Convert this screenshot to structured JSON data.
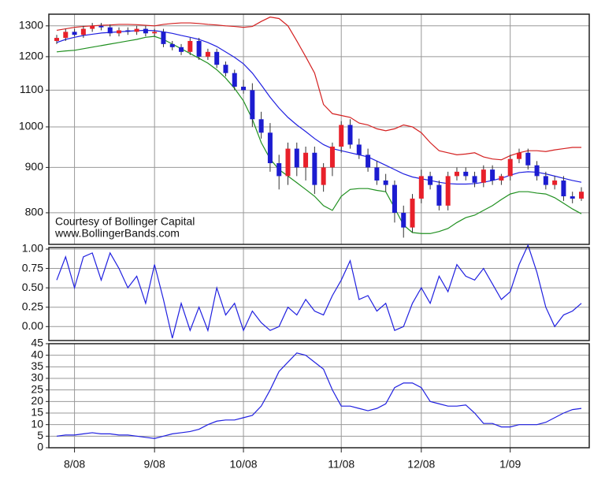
{
  "chart_data": [
    {
      "type": "candlestick",
      "annotations": [
        "Courtesy of Bollinger Capital",
        "www.BollingerBands.com"
      ],
      "categories": [
        null,
        null,
        "8/08",
        null,
        null,
        null,
        null,
        null,
        null,
        null,
        null,
        "9/08",
        null,
        null,
        null,
        null,
        null,
        null,
        null,
        null,
        null,
        "10/08",
        null,
        null,
        null,
        null,
        null,
        null,
        null,
        null,
        null,
        null,
        "11/08",
        null,
        null,
        null,
        null,
        null,
        null,
        null,
        null,
        "12/08",
        null,
        null,
        null,
        null,
        null,
        null,
        null,
        null,
        null,
        "1/09",
        null,
        null,
        null,
        null,
        null,
        null,
        null,
        null
      ],
      "open": [
        1250,
        1260,
        1280,
        1270,
        1290,
        1300,
        1295,
        1275,
        1285,
        1280,
        1290,
        1275,
        1280,
        1240,
        1230,
        1215,
        1250,
        1200,
        1215,
        1175,
        1150,
        1110,
        1100,
        1020,
        985,
        910,
        880,
        945,
        900,
        935,
        860,
        900,
        950,
        1005,
        955,
        930,
        900,
        870,
        860,
        800,
        770,
        830,
        880,
        860,
        815,
        880,
        890,
        880,
        865,
        895,
        870,
        880,
        920,
        935,
        905,
        880,
        860,
        870,
        835,
        830
      ],
      "high": [
        1270,
        1290,
        1290,
        1300,
        1310,
        1310,
        1305,
        1295,
        1295,
        1300,
        1300,
        1290,
        1290,
        1250,
        1240,
        1260,
        1260,
        1225,
        1225,
        1185,
        1160,
        1130,
        1120,
        1040,
        1010,
        930,
        960,
        960,
        950,
        950,
        910,
        960,
        1015,
        1020,
        970,
        945,
        915,
        885,
        870,
        815,
        840,
        895,
        890,
        870,
        890,
        900,
        900,
        890,
        905,
        905,
        885,
        930,
        945,
        945,
        915,
        890,
        880,
        880,
        845,
        855
      ],
      "low": [
        1240,
        1250,
        1265,
        1260,
        1280,
        1285,
        1265,
        1265,
        1270,
        1270,
        1265,
        1265,
        1230,
        1220,
        1205,
        1205,
        1190,
        1190,
        1165,
        1140,
        1100,
        1090,
        1000,
        970,
        890,
        850,
        860,
        880,
        870,
        840,
        845,
        880,
        935,
        945,
        920,
        890,
        860,
        845,
        780,
        750,
        760,
        820,
        850,
        805,
        805,
        870,
        870,
        855,
        855,
        860,
        860,
        870,
        910,
        895,
        870,
        850,
        850,
        825,
        820,
        825
      ],
      "close": [
        1260,
        1280,
        1270,
        1290,
        1300,
        1295,
        1275,
        1285,
        1280,
        1290,
        1275,
        1280,
        1240,
        1230,
        1215,
        1250,
        1200,
        1215,
        1175,
        1150,
        1110,
        1100,
        1020,
        985,
        910,
        880,
        945,
        900,
        935,
        860,
        900,
        950,
        1005,
        955,
        930,
        900,
        870,
        860,
        800,
        770,
        830,
        880,
        860,
        815,
        880,
        890,
        880,
        865,
        895,
        870,
        880,
        920,
        935,
        905,
        880,
        860,
        870,
        835,
        830,
        845
      ],
      "up_color": "#e8202a",
      "down_color": "#1c1cd0",
      "wick_color": "#333333",
      "series": [
        {
          "color": "#2020e0",
          "values": [
            1245,
            1255,
            1262,
            1268,
            1272,
            1276,
            1278,
            1280,
            1282,
            1284,
            1285,
            1284,
            1280,
            1275,
            1268,
            1262,
            1255,
            1245,
            1232,
            1215,
            1198,
            1178,
            1150,
            1115,
            1080,
            1050,
            1025,
            1005,
            988,
            970,
            955,
            945,
            940,
            935,
            930,
            925,
            915,
            905,
            895,
            885,
            878,
            874,
            870,
            866,
            863,
            862,
            862,
            863,
            866,
            870,
            875,
            882,
            888,
            890,
            889,
            885,
            880,
            875,
            870,
            866
          ]
        },
        {
          "color": "#d42020",
          "values": [
            1285,
            1290,
            1295,
            1298,
            1300,
            1302,
            1303,
            1305,
            1305,
            1304,
            1302,
            1300,
            1305,
            1308,
            1310,
            1310,
            1308,
            1305,
            1303,
            1300,
            1298,
            1295,
            1298,
            1315,
            1330,
            1325,
            1300,
            1250,
            1200,
            1150,
            1060,
            1035,
            1030,
            1025,
            1010,
            1005,
            995,
            990,
            995,
            1005,
            1000,
            985,
            960,
            940,
            935,
            930,
            932,
            935,
            925,
            920,
            918,
            928,
            935,
            940,
            940,
            938,
            942,
            945,
            948,
            948
          ]
        },
        {
          "color": "#209020",
          "values": [
            1215,
            1218,
            1220,
            1225,
            1230,
            1235,
            1240,
            1245,
            1250,
            1255,
            1262,
            1265,
            1255,
            1240,
            1225,
            1210,
            1195,
            1180,
            1160,
            1135,
            1105,
            1070,
            1020,
            960,
            920,
            895,
            880,
            865,
            850,
            835,
            815,
            805,
            835,
            850,
            852,
            852,
            848,
            845,
            810,
            775,
            760,
            758,
            758,
            762,
            768,
            780,
            790,
            795,
            805,
            815,
            828,
            840,
            845,
            845,
            842,
            840,
            832,
            820,
            808,
            798
          ]
        }
      ],
      "log_scale": true,
      "ylim": [
        737,
        1340
      ],
      "yticks": [
        800,
        900,
        1000,
        1100,
        1200,
        1300
      ],
      "grid": true
    },
    {
      "type": "line",
      "color": "#2020e0",
      "values": [
        0.6,
        0.9,
        0.5,
        0.9,
        0.95,
        0.6,
        0.95,
        0.75,
        0.5,
        0.65,
        0.3,
        0.8,
        0.35,
        -0.15,
        0.3,
        -0.05,
        0.25,
        -0.05,
        0.5,
        0.15,
        0.3,
        -0.05,
        0.2,
        0.05,
        -0.05,
        0.0,
        0.25,
        0.15,
        0.35,
        0.2,
        0.15,
        0.4,
        0.6,
        0.85,
        0.35,
        0.4,
        0.2,
        0.3,
        -0.05,
        0.0,
        0.3,
        0.5,
        0.3,
        0.65,
        0.45,
        0.8,
        0.65,
        0.6,
        0.75,
        0.55,
        0.35,
        0.45,
        0.8,
        1.05,
        0.7,
        0.25,
        0.0,
        0.15,
        0.2,
        0.3
      ],
      "ylim": [
        -0.18,
        1.02
      ],
      "yticks": [
        {
          "value": 0,
          "label": "0.00"
        },
        {
          "value": 0.25,
          "label": "0.25"
        },
        {
          "value": 0.5,
          "label": "0.50"
        },
        {
          "value": 0.75,
          "label": "0.75"
        },
        {
          "value": 1,
          "label": "1.00"
        }
      ],
      "grid": true
    },
    {
      "type": "line",
      "color": "#2020e0",
      "values": [
        5,
        5.5,
        5.5,
        6,
        6.5,
        6,
        6,
        5.5,
        5.5,
        5,
        4.5,
        4,
        5,
        6,
        6.5,
        7,
        8,
        10,
        11.5,
        12,
        12,
        13,
        14,
        18,
        25,
        33,
        37,
        41,
        40,
        37,
        34,
        25,
        18,
        18,
        17,
        16,
        17,
        19,
        26,
        28,
        28,
        26,
        20,
        19,
        18,
        18,
        18.5,
        15,
        10.5,
        10.5,
        9,
        9,
        10,
        10,
        10,
        11,
        13,
        15,
        16.5,
        17
      ],
      "ylim": [
        0,
        45
      ],
      "yticks": [
        0,
        5,
        10,
        15,
        20,
        25,
        30,
        35,
        40,
        45
      ],
      "grid": true
    }
  ]
}
